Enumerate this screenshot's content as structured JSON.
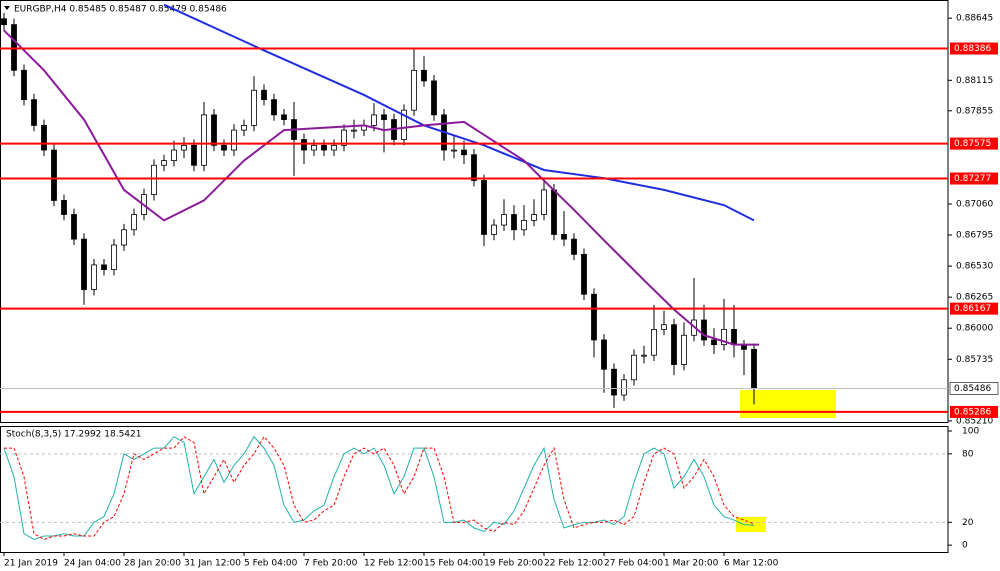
{
  "chart_data": [
    {
      "type": "candlestick",
      "title": "EURGBP,H4  0.85485 0.85487 0.85479 0.85486",
      "categories": [
        "21 Jan 2019",
        null,
        null,
        null,
        null,
        null,
        "24 Jan 04:00",
        null,
        null,
        null,
        null,
        null,
        "28 Jan 20:00",
        null,
        null,
        null,
        null,
        null,
        "31 Jan 12:00",
        null,
        null,
        null,
        null,
        null,
        "5 Feb 04:00",
        null,
        null,
        null,
        null,
        null,
        "7 Feb 20:00",
        null,
        null,
        null,
        null,
        null,
        "12 Feb 12:00",
        null,
        null,
        null,
        null,
        null,
        "15 Feb 04:00",
        null,
        null,
        null,
        null,
        null,
        "19 Feb 20:00",
        null,
        null,
        null,
        null,
        null,
        "22 Feb 12:00",
        null,
        null,
        null,
        null,
        null,
        "27 Feb 04:00",
        null,
        null,
        null,
        null,
        null,
        "1 Mar 20:00",
        null,
        null,
        null,
        null,
        null,
        "6 Mar 12:00",
        null,
        null,
        null
      ],
      "open": [
        0.8864,
        0.8859,
        0.882,
        0.8795,
        0.8773,
        0.8752,
        0.8709,
        0.8697,
        0.8676,
        0.8633,
        0.8654,
        0.865,
        0.8671,
        0.8684,
        0.8697,
        0.8714,
        0.8739,
        0.8743,
        0.8752,
        0.8756,
        0.8739,
        0.8782,
        0.8756,
        0.8752,
        0.8769,
        0.8773,
        0.8803,
        0.8795,
        0.8782,
        0.8778,
        0.8761,
        0.8752,
        0.8756,
        0.8752,
        0.8756,
        0.8769,
        0.8769,
        0.8773,
        0.8782,
        0.8778,
        0.8761,
        0.8786,
        0.882,
        0.8811,
        0.8782,
        0.8752,
        0.8752,
        0.8748,
        0.8726,
        0.868,
        0.8688,
        0.8697,
        0.8684,
        0.8692,
        0.8697,
        0.8718,
        0.868,
        0.8676,
        0.8663,
        0.8629,
        0.859,
        0.8565,
        0.8543,
        0.8556,
        0.8577,
        0.8577,
        0.8599,
        0.8603,
        0.8569,
        0.8594,
        0.8607,
        0.859,
        0.8586,
        0.8599,
        0.8586,
        0.8582
      ],
      "high": [
        0.8869,
        0.8864,
        0.8825,
        0.88,
        0.8778,
        0.8757,
        0.8714,
        0.8702,
        0.8681,
        0.8659,
        0.8659,
        0.8676,
        0.8689,
        0.8702,
        0.8719,
        0.8744,
        0.8748,
        0.876,
        0.8763,
        0.8761,
        0.8793,
        0.8787,
        0.8761,
        0.8774,
        0.8778,
        0.8815,
        0.8808,
        0.88,
        0.8787,
        0.8793,
        0.8766,
        0.8761,
        0.8761,
        0.8761,
        0.8774,
        0.8778,
        0.8778,
        0.8792,
        0.8787,
        0.8783,
        0.8791,
        0.8838,
        0.8832,
        0.8816,
        0.8787,
        0.8765,
        0.876,
        0.8753,
        0.8731,
        0.8693,
        0.871,
        0.8705,
        0.8705,
        0.871,
        0.8727,
        0.8723,
        0.87,
        0.8681,
        0.8668,
        0.8634,
        0.8595,
        0.857,
        0.8561,
        0.8582,
        0.8585,
        0.862,
        0.8615,
        0.8608,
        0.8605,
        0.8643,
        0.862,
        0.86,
        0.8625,
        0.862,
        0.859,
        0.8587
      ],
      "low": [
        0.8854,
        0.8815,
        0.879,
        0.8768,
        0.8747,
        0.8704,
        0.8692,
        0.8671,
        0.862,
        0.8628,
        0.8645,
        0.8645,
        0.8666,
        0.8679,
        0.8692,
        0.8709,
        0.8734,
        0.8738,
        0.8745,
        0.8734,
        0.8734,
        0.8751,
        0.8747,
        0.8747,
        0.8764,
        0.8768,
        0.879,
        0.8777,
        0.8773,
        0.873,
        0.874,
        0.8747,
        0.8747,
        0.8747,
        0.8751,
        0.8762,
        0.8764,
        0.8768,
        0.875,
        0.8756,
        0.8756,
        0.8781,
        0.8806,
        0.8777,
        0.8743,
        0.8745,
        0.874,
        0.8721,
        0.867,
        0.8675,
        0.8683,
        0.8675,
        0.8679,
        0.8687,
        0.8692,
        0.8675,
        0.867,
        0.8658,
        0.8624,
        0.8575,
        0.8545,
        0.8532,
        0.8538,
        0.8551,
        0.857,
        0.8572,
        0.8594,
        0.856,
        0.8564,
        0.8589,
        0.8585,
        0.8578,
        0.8581,
        0.8575,
        0.856,
        0.8535
      ],
      "close": [
        0.8859,
        0.882,
        0.8795,
        0.8773,
        0.8752,
        0.8709,
        0.8697,
        0.8676,
        0.8633,
        0.8654,
        0.865,
        0.8671,
        0.8684,
        0.8697,
        0.8714,
        0.8739,
        0.8743,
        0.8752,
        0.8756,
        0.8739,
        0.8782,
        0.8756,
        0.8752,
        0.8769,
        0.8773,
        0.8803,
        0.8795,
        0.8782,
        0.8778,
        0.8761,
        0.8752,
        0.8756,
        0.8752,
        0.8756,
        0.8769,
        0.8769,
        0.8773,
        0.8782,
        0.8778,
        0.8761,
        0.8786,
        0.882,
        0.8811,
        0.8782,
        0.8752,
        0.8752,
        0.8748,
        0.8726,
        0.868,
        0.8688,
        0.8697,
        0.8684,
        0.8692,
        0.8697,
        0.8718,
        0.868,
        0.8676,
        0.8663,
        0.8629,
        0.859,
        0.8565,
        0.8543,
        0.8556,
        0.8577,
        0.8577,
        0.8599,
        0.8603,
        0.8569,
        0.8594,
        0.8607,
        0.859,
        0.8586,
        0.8599,
        0.8586,
        0.8582,
        0.85486
      ],
      "ylim": [
        0.852,
        0.888
      ],
      "yticks": [
        0.88645,
        0.88115,
        0.87855,
        {
          "value": 0.8706,
          "label": "0.87060"
        },
        0.86795,
        {
          "value": 0.8653,
          "label": "0.86530"
        },
        0.86265,
        {
          "value": 0.86,
          "label": "0.86000"
        },
        0.85735,
        {
          "value": 0.8521,
          "label": "0.85210"
        }
      ],
      "levels": [
        {
          "value": 0.88386,
          "color": "#ff0000"
        },
        {
          "value": 0.87575,
          "color": "#ff0000"
        },
        {
          "value": 0.87277,
          "color": "#ff0000"
        },
        {
          "value": 0.86167,
          "color": "#ff0000"
        },
        {
          "value": 0.85286,
          "color": "#ff0000"
        }
      ],
      "current_price": {
        "value": 0.85486,
        "color": "#c0c0c0"
      },
      "series": [
        {
          "color": "#1f2fe0",
          "x": [
            16,
            26,
            36,
            42,
            48,
            54,
            60,
            66,
            72,
            75
          ],
          "values": [
            0.8876,
            0.8837,
            0.8799,
            0.8773,
            0.8756,
            0.8735,
            0.8728,
            0.8718,
            0.8705,
            0.8692
          ]
        },
        {
          "color": "#8b1a9b",
          "x": [
            0,
            4,
            8,
            12,
            16,
            20,
            24,
            28,
            32,
            36,
            38,
            42,
            46,
            48,
            52,
            54,
            57,
            60,
            64,
            67,
            70,
            73,
            75.5
          ],
          "values": [
            0.8854,
            0.882,
            0.8778,
            0.8718,
            0.8692,
            0.8709,
            0.8743,
            0.8769,
            0.8771,
            0.8773,
            0.8769,
            0.8773,
            0.8776,
            0.8765,
            0.8743,
            0.8726,
            0.8701,
            0.8675,
            0.8641,
            0.8616,
            0.8594,
            0.8586,
            0.8586
          ]
        }
      ]
    },
    {
      "type": "line",
      "title": "Stoch(8,3,5) 17.2992 18.5421",
      "ylim": [
        -6,
        103.5
      ],
      "yticks": [
        0,
        20,
        80,
        100
      ],
      "levels": [
        20,
        80
      ],
      "series": [
        {
          "color": "#20b2aa",
          "dash": false,
          "values": [
            85,
            60,
            10,
            5,
            8,
            8,
            10,
            8,
            8,
            20,
            25,
            45,
            80,
            75,
            80,
            85,
            85,
            95,
            90,
            45,
            60,
            75,
            55,
            70,
            80,
            95,
            85,
            70,
            35,
            20,
            22,
            30,
            35,
            60,
            80,
            85,
            80,
            85,
            70,
            45,
            60,
            85,
            85,
            60,
            20,
            20,
            22,
            15,
            12,
            20,
            18,
            30,
            50,
            70,
            85,
            40,
            15,
            18,
            20,
            20,
            22,
            18,
            25,
            55,
            80,
            85,
            80,
            50,
            60,
            75,
            60,
            35,
            25,
            22,
            18,
            17.3
          ]
        },
        {
          "color": "#ff0000",
          "dash": true,
          "values": [
            85,
            85,
            60,
            10,
            5,
            8,
            8,
            10,
            8,
            8,
            20,
            25,
            45,
            80,
            75,
            80,
            85,
            85,
            95,
            90,
            45,
            60,
            75,
            55,
            70,
            80,
            95,
            85,
            70,
            35,
            20,
            22,
            30,
            35,
            60,
            80,
            85,
            80,
            85,
            70,
            45,
            60,
            85,
            85,
            60,
            20,
            20,
            22,
            15,
            12,
            20,
            18,
            30,
            50,
            70,
            85,
            40,
            15,
            18,
            20,
            20,
            22,
            18,
            25,
            55,
            80,
            85,
            80,
            50,
            60,
            75,
            60,
            35,
            25,
            22,
            18.5
          ]
        }
      ]
    }
  ]
}
